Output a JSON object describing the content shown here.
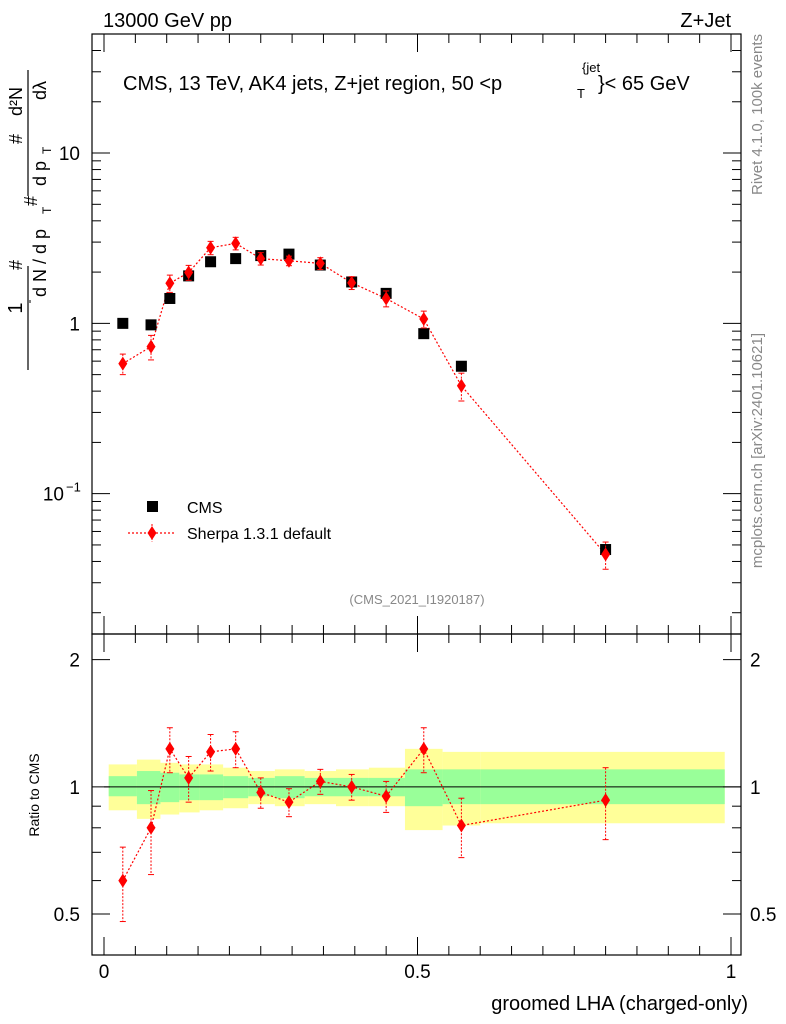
{
  "header": {
    "left": "13000 GeV pp",
    "right": "Z+Jet"
  },
  "side_text": {
    "version": "Rivet 4.1.0,  100k events",
    "source": "mcplots.cern.ch [arXiv:2401.10621]"
  },
  "plot_title": {
    "main": "CMS, 13 TeV, AK4 jets, Z+jet region, 50 <p",
    "sub": "T",
    "sup": "{jet",
    "close": "}< 65 GeV"
  },
  "analysis_id": "(CMS_2021_I1920187)",
  "ylabel_main": {
    "hash1": "#",
    "one": "1",
    "dN": "d N / d p",
    "dN_sub": "T",
    "hash2": "#",
    "d2N": "d²N",
    "dpT": "d p",
    "dpT_sub": "T",
    "dlambda": "dλ",
    "hash3": "#"
  },
  "ylabel_ratio": "Ratio to CMS",
  "xlabel": "groomed LHA (charged-only)",
  "colors": {
    "data": "#000000",
    "mc": "#ff0000",
    "band_inner": "#99ff99",
    "band_outer": "#ffff99"
  },
  "main_ticks": [
    {
      "value": 10,
      "label": "10"
    },
    {
      "value": 1,
      "label": "1"
    },
    {
      "value": 0.1,
      "label": "10",
      "sup": "−1"
    }
  ],
  "ratio_ticks": [
    {
      "value": 2,
      "label": "2"
    },
    {
      "value": 1,
      "label": "1"
    },
    {
      "value": 0.5,
      "label": "0.5"
    }
  ],
  "x_ticks": [
    {
      "value": 0,
      "label": "0"
    },
    {
      "value": 0.5,
      "label": "0.5"
    },
    {
      "value": 1,
      "label": "1"
    }
  ],
  "legend": [
    {
      "label": "CMS",
      "kind": "data"
    },
    {
      "label": "Sherpa 1.3.1 default",
      "kind": "mc"
    }
  ],
  "chart_data": {
    "type": "scatter",
    "title": "CMS, 13 TeV, AK4 jets, Z+jet region, 50 < pT jet < 65 GeV",
    "xlabel": "groomed LHA (charged-only)",
    "ylabel": "1/(dN/dpT) d2N/dpT dlambda",
    "xlim": [
      0,
      1
    ],
    "ylim_main": [
      0.015,
      50
    ],
    "yscale_main": "log",
    "ylim_ratio": [
      0.4,
      2.3
    ],
    "yscale_ratio": "log",
    "legend_position": "bottom-left",
    "series": [
      {
        "name": "CMS",
        "x": [
          0.03,
          0.075,
          0.105,
          0.135,
          0.17,
          0.21,
          0.25,
          0.295,
          0.345,
          0.395,
          0.45,
          0.51,
          0.57,
          0.8
        ],
        "values": [
          1.0,
          0.98,
          1.4,
          1.9,
          2.3,
          2.4,
          2.5,
          2.55,
          2.2,
          1.75,
          1.5,
          0.87,
          0.56,
          0.047
        ],
        "band_inner": [
          [
            0.95,
            1.06
          ],
          [
            0.91,
            1.09
          ],
          [
            0.92,
            1.08
          ],
          [
            0.93,
            1.07
          ],
          [
            0.93,
            1.07
          ],
          [
            0.94,
            1.06
          ],
          [
            0.95,
            1.05
          ],
          [
            0.94,
            1.06
          ],
          [
            0.95,
            1.05
          ],
          [
            0.95,
            1.05
          ],
          [
            0.95,
            1.05
          ],
          [
            0.9,
            1.1
          ],
          [
            0.91,
            1.1
          ],
          [
            0.91,
            1.1
          ]
        ],
        "band_outer": [
          [
            0.88,
            1.13
          ],
          [
            0.84,
            1.16
          ],
          [
            0.86,
            1.14
          ],
          [
            0.87,
            1.13
          ],
          [
            0.88,
            1.13
          ],
          [
            0.89,
            1.11
          ],
          [
            0.91,
            1.09
          ],
          [
            0.9,
            1.1
          ],
          [
            0.91,
            1.09
          ],
          [
            0.9,
            1.1
          ],
          [
            0.9,
            1.11
          ],
          [
            0.79,
            1.23
          ],
          [
            0.81,
            1.21
          ],
          [
            0.82,
            1.21
          ]
        ]
      },
      {
        "name": "Sherpa 1.3.1 default",
        "x": [
          0.03,
          0.075,
          0.105,
          0.135,
          0.17,
          0.21,
          0.25,
          0.295,
          0.345,
          0.395,
          0.45,
          0.51,
          0.57,
          0.8
        ],
        "values": [
          0.58,
          0.73,
          1.72,
          1.99,
          2.78,
          2.95,
          2.4,
          2.33,
          2.25,
          1.73,
          1.4,
          1.06,
          0.43,
          0.044
        ],
        "err_low": [
          0.08,
          0.12,
          0.2,
          0.2,
          0.25,
          0.25,
          0.2,
          0.15,
          0.18,
          0.15,
          0.15,
          0.12,
          0.08,
          0.008
        ],
        "err_high": [
          0.08,
          0.12,
          0.2,
          0.2,
          0.25,
          0.25,
          0.2,
          0.15,
          0.18,
          0.15,
          0.15,
          0.12,
          0.08,
          0.008
        ],
        "ratio": [
          0.6,
          0.8,
          1.23,
          1.05,
          1.21,
          1.23,
          0.97,
          0.92,
          1.03,
          1.0,
          0.95,
          1.23,
          0.81,
          0.93
        ],
        "ratio_err": [
          0.12,
          0.18,
          0.15,
          0.13,
          0.12,
          0.12,
          0.08,
          0.07,
          0.07,
          0.07,
          0.08,
          0.15,
          0.13,
          0.18
        ]
      }
    ]
  }
}
